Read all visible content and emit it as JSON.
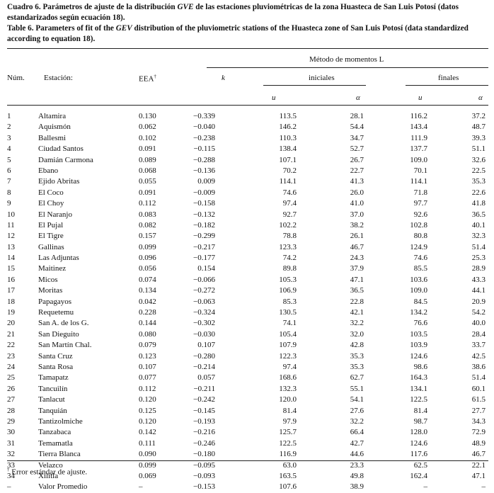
{
  "caption_es": {
    "lead": "Cuadro 6.  Parámetros de ajuste de la distribución ",
    "gve": "GVE",
    "rest": " de las estaciones pluviométricas de la zona Huasteca de San Luis Potosí (datos estandarizados según ecuación 18)."
  },
  "caption_en": {
    "lead": "Table 6. ",
    "pre": "Parameters of fit of the ",
    "gev": "GEV",
    "rest": " distribution of the pluviometric stations of the Huasteca zone of San Luis Potosí (data standardized according to equation 18)."
  },
  "header": {
    "method": "Método de momentos L",
    "num": "Núm.",
    "station": "Estación:",
    "eea": "EEA",
    "dagger": "†",
    "k": "k",
    "initial": "iniciales",
    "final": "finales",
    "u": "u",
    "alpha": "α"
  },
  "rows": [
    {
      "num": "1",
      "name": "Altamira",
      "eea": "0.130",
      "k": "−0.339",
      "ui": "113.5",
      "ai": "28.1",
      "uf": "116.2",
      "af": "37.2"
    },
    {
      "num": "2",
      "name": "Aquismón",
      "eea": "0.062",
      "k": "−0.040",
      "ui": "146.2",
      "ai": "54.4",
      "uf": "143.4",
      "af": "48.7"
    },
    {
      "num": "3",
      "name": "Ballesmi",
      "eea": "0.102",
      "k": "−0.238",
      "ui": "110.3",
      "ai": "34.7",
      "uf": "111.9",
      "af": "39.3"
    },
    {
      "num": "4",
      "name": "Ciudad Santos",
      "eea": "0.091",
      "k": "−0.115",
      "ui": "138.4",
      "ai": "52.7",
      "uf": "137.7",
      "af": "51.1"
    },
    {
      "num": "5",
      "name": "Damián Carmona",
      "eea": "0.089",
      "k": "−0.288",
      "ui": "107.1",
      "ai": "26.7",
      "uf": "109.0",
      "af": "32.6"
    },
    {
      "num": "6",
      "name": "Ebano",
      "eea": "0.068",
      "k": "−0.136",
      "ui": "70.2",
      "ai": "22.7",
      "uf": "70.1",
      "af": "22.5"
    },
    {
      "num": "7",
      "name": "Ejido Abritas",
      "eea": "0.055",
      "k": "0.009",
      "ui": "114.1",
      "ai": "41.3",
      "uf": "114.1",
      "af": "35.3"
    },
    {
      "num": "8",
      "name": "El Coco",
      "eea": "0.091",
      "k": "−0.009",
      "ui": "74.6",
      "ai": "26.0",
      "uf": "71.8",
      "af": "22.6"
    },
    {
      "num": "9",
      "name": "El Choy",
      "eea": "0.112",
      "k": "−0.158",
      "ui": "97.4",
      "ai": "41.0",
      "uf": "97.7",
      "af": "41.8"
    },
    {
      "num": "10",
      "name": "El Naranjo",
      "eea": "0.083",
      "k": "−0.132",
      "ui": "92.7",
      "ai": "37.0",
      "uf": "92.6",
      "af": "36.5"
    },
    {
      "num": "11",
      "name": "El Pujal",
      "eea": "0.082",
      "k": "−0.182",
      "ui": "102.2",
      "ai": "38.2",
      "uf": "102.8",
      "af": "40.1"
    },
    {
      "num": "12",
      "name": "El Tigre",
      "eea": "0.157",
      "k": "−0.299",
      "ui": "78.8",
      "ai": "26.1",
      "uf": "80.8",
      "af": "32.3"
    },
    {
      "num": "13",
      "name": "Gallinas",
      "eea": "0.099",
      "k": "−0.217",
      "ui": "123.3",
      "ai": "46.7",
      "uf": "124.9",
      "af": "51.4"
    },
    {
      "num": "14",
      "name": "Las Adjuntas",
      "eea": "0.096",
      "k": "−0.177",
      "ui": "74.2",
      "ai": "24.3",
      "uf": "74.6",
      "af": "25.3"
    },
    {
      "num": "15",
      "name": "Maitinez",
      "eea": "0.056",
      "k": "0.154",
      "ui": "89.8",
      "ai": "37.9",
      "uf": "85.5",
      "af": "28.9"
    },
    {
      "num": "16",
      "name": "Micos",
      "eea": "0.074",
      "k": "−0.066",
      "ui": "105.3",
      "ai": "47.1",
      "uf": "103.6",
      "af": "43.3"
    },
    {
      "num": "17",
      "name": "Moritas",
      "eea": "0.134",
      "k": "−0.272",
      "ui": "106.9",
      "ai": "36.5",
      "uf": "109.0",
      "af": "44.1"
    },
    {
      "num": "18",
      "name": "Papagayos",
      "eea": "0.042",
      "k": "−0.063",
      "ui": "85.3",
      "ai": "22.8",
      "uf": "84.5",
      "af": "20.9"
    },
    {
      "num": "19",
      "name": "Requetemu",
      "eea": "0.228",
      "k": "−0.324",
      "ui": "130.5",
      "ai": "42.1",
      "uf": "134.2",
      "af": "54.2"
    },
    {
      "num": "20",
      "name": "San A. de los G.",
      "eea": "0.144",
      "k": "−0.302",
      "ui": "74.1",
      "ai": "32.2",
      "uf": "76.6",
      "af": "40.0"
    },
    {
      "num": "21",
      "name": "San Dieguito",
      "eea": "0.080",
      "k": "−0.030",
      "ui": "105.4",
      "ai": "32.0",
      "uf": "103.5",
      "af": "28.4"
    },
    {
      "num": "22",
      "name": "San Martín Chal.",
      "eea": "0.079",
      "k": "0.107",
      "ui": "107.9",
      "ai": "42.8",
      "uf": "103.9",
      "af": "33.7"
    },
    {
      "num": "23",
      "name": "Santa Cruz",
      "eea": "0.123",
      "k": "−0.280",
      "ui": "122.3",
      "ai": "35.3",
      "uf": "124.6",
      "af": "42.5"
    },
    {
      "num": "24",
      "name": "Santa Rosa",
      "eea": "0.107",
      "k": "−0.214",
      "ui": "97.4",
      "ai": "35.3",
      "uf": "98.6",
      "af": "38.6"
    },
    {
      "num": "25",
      "name": "Tamapatz",
      "eea": "0.077",
      "k": "0.057",
      "ui": "168.6",
      "ai": "62.7",
      "uf": "164.3",
      "af": "51.4"
    },
    {
      "num": "26",
      "name": "Tancuilín",
      "eea": "0.112",
      "k": "−0.211",
      "ui": "132.3",
      "ai": "55.1",
      "uf": "134.1",
      "af": "60.1"
    },
    {
      "num": "27",
      "name": "Tanlacut",
      "eea": "0.120",
      "k": "−0.242",
      "ui": "120.0",
      "ai": "54.1",
      "uf": "122.5",
      "af": "61.5"
    },
    {
      "num": "28",
      "name": "Tanquián",
      "eea": "0.125",
      "k": "−0.145",
      "ui": "81.4",
      "ai": "27.6",
      "uf": "81.4",
      "af": "27.7"
    },
    {
      "num": "29",
      "name": "Tantizolmiche",
      "eea": "0.120",
      "k": "−0.193",
      "ui": "97.9",
      "ai": "32.2",
      "uf": "98.7",
      "af": "34.3"
    },
    {
      "num": "30",
      "name": "Tanzabaca",
      "eea": "0.142",
      "k": "−0.216",
      "ui": "125.7",
      "ai": "66.4",
      "uf": "128.0",
      "af": "72.9"
    },
    {
      "num": "31",
      "name": "Temamatla",
      "eea": "0.111",
      "k": "−0.246",
      "ui": "122.5",
      "ai": "42.7",
      "uf": "124.6",
      "af": "48.9"
    },
    {
      "num": "32",
      "name": "Tierra Blanca",
      "eea": "0.090",
      "k": "−0.180",
      "ui": "116.9",
      "ai": "44.6",
      "uf": "117.6",
      "af": "46.7"
    },
    {
      "num": "33",
      "name": "Velazco",
      "eea": "0.099",
      "k": "−0.095",
      "ui": "63.0",
      "ai": "23.3",
      "uf": "62.5",
      "af": "22.1"
    },
    {
      "num": "34",
      "name": "Xilitla",
      "eea": "0.069",
      "k": "−0.093",
      "ui": "163.5",
      "ai": "49.8",
      "uf": "162.4",
      "af": "47.1"
    },
    {
      "num": "–",
      "name": "Valor Promedio",
      "eea": "–",
      "k": "−0.153",
      "ui": "107.6",
      "ai": "38.9",
      "uf": "–",
      "af": "–"
    }
  ],
  "footnote": {
    "dagger": "†",
    "text": " Error estándar de ajuste."
  }
}
